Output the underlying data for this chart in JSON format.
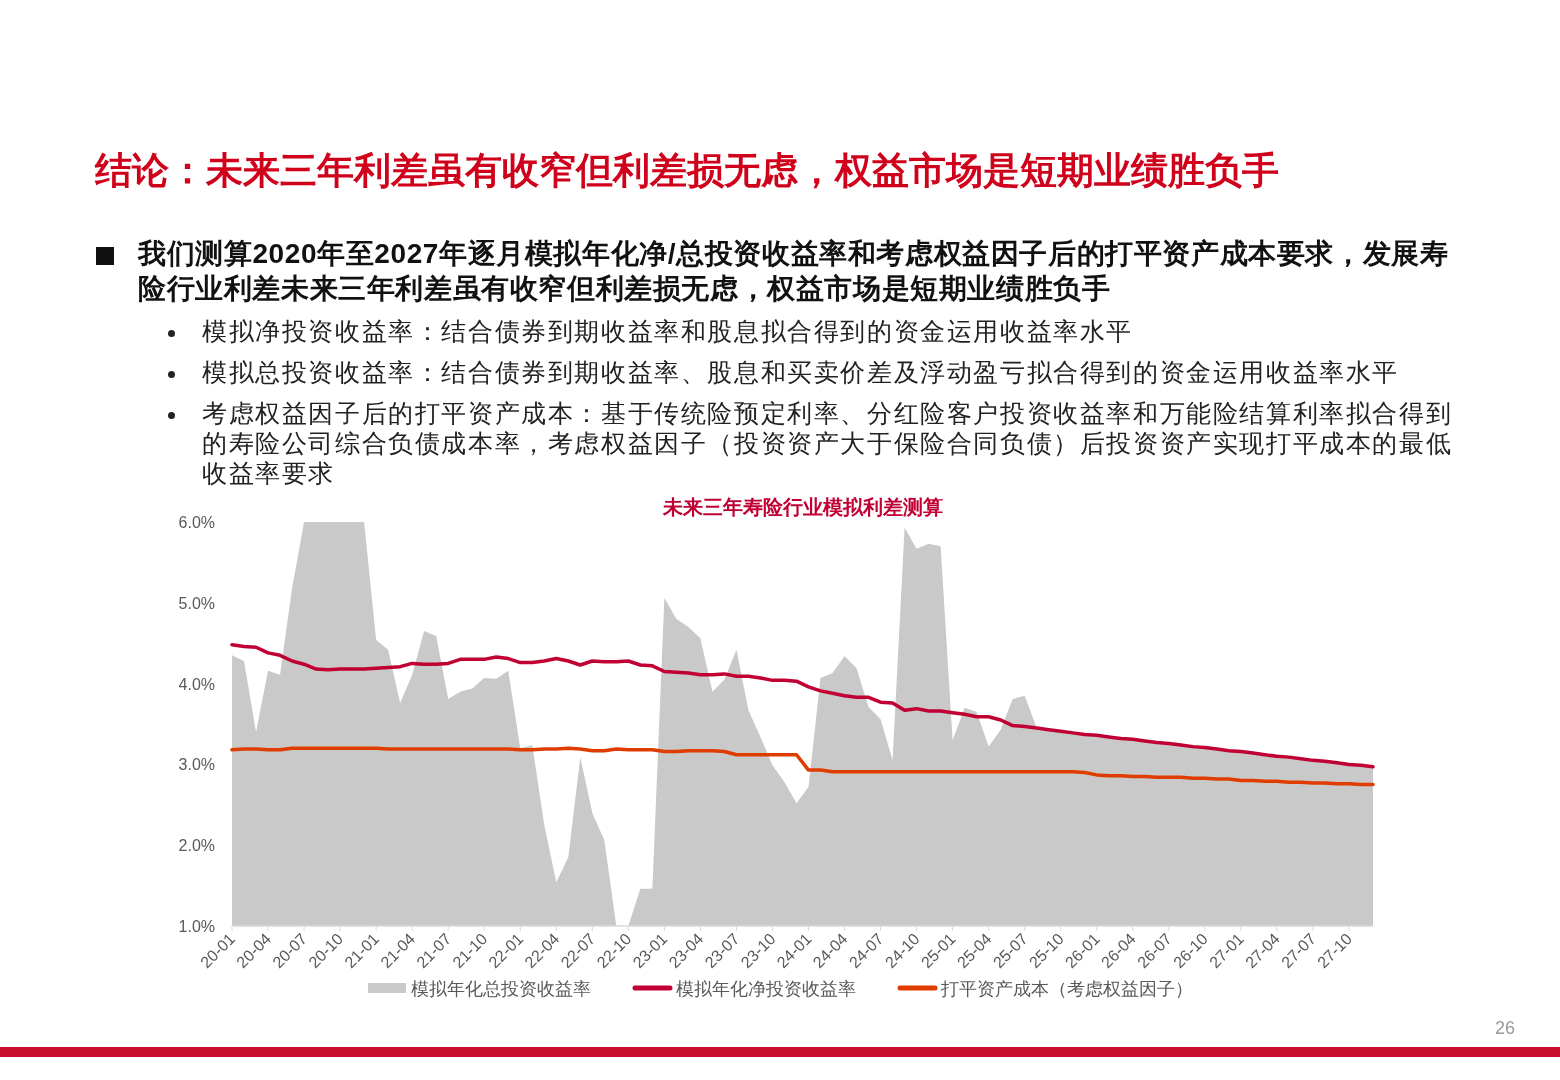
{
  "chart_data": {
    "type": "line",
    "title": "未来三年寿险行业模拟利差测算",
    "categories": [
      "20-01",
      null,
      null,
      "20-04",
      null,
      null,
      "20-07",
      null,
      null,
      "20-10",
      null,
      null,
      "21-01",
      null,
      null,
      "21-04",
      null,
      null,
      "21-07",
      null,
      null,
      "21-10",
      null,
      null,
      "22-01",
      null,
      null,
      "22-04",
      null,
      null,
      "22-07",
      null,
      null,
      "22-10",
      null,
      null,
      "23-01",
      null,
      null,
      "23-04",
      null,
      null,
      "23-07",
      null,
      null,
      "23-10",
      null,
      null,
      "24-01",
      null,
      null,
      "24-04",
      null,
      null,
      "24-07",
      null,
      null,
      "24-10",
      null,
      null,
      "25-01",
      null,
      null,
      "25-04",
      null,
      null,
      "25-07",
      null,
      null,
      "25-10",
      null,
      null,
      "26-01",
      null,
      null,
      "26-04",
      null,
      null,
      "26-07",
      null,
      null,
      "26-10",
      null,
      null,
      "27-01",
      null,
      null,
      "27-04",
      null,
      null,
      "27-07",
      null,
      null,
      "27-10",
      null,
      null
    ],
    "series": [
      {
        "name": "模拟年化总投资收益率",
        "type": "area",
        "color": "#c9c9c9",
        "values": [
          4.35,
          4.28,
          3.4,
          4.16,
          4.11,
          5.18,
          6.0,
          6.0,
          6.0,
          6.0,
          6.0,
          6.0,
          4.54,
          4.42,
          3.76,
          4.11,
          4.65,
          4.59,
          3.81,
          3.9,
          3.94,
          4.07,
          4.06,
          4.16,
          3.2,
          3.24,
          2.25,
          1.54,
          1.85,
          3.09,
          2.4,
          2.06,
          1.0,
          1.0,
          1.46,
          1.46,
          5.06,
          4.8,
          4.7,
          4.56,
          3.9,
          4.05,
          4.42,
          3.67,
          3.34,
          2.99,
          2.78,
          2.52,
          2.72,
          4.07,
          4.13,
          4.34,
          4.19,
          3.71,
          3.56,
          3.05,
          5.93,
          5.67,
          5.73,
          5.7,
          3.3,
          3.7,
          3.65,
          3.22,
          3.43,
          3.81,
          3.85,
          3.45,
          3.43,
          3.41,
          3.39,
          3.37,
          3.36,
          3.34,
          3.32,
          3.31,
          3.29,
          3.27,
          3.26,
          3.24,
          3.22,
          3.21,
          3.19,
          3.17,
          3.16,
          3.14,
          3.12,
          3.1,
          3.09,
          3.07,
          3.05,
          3.04,
          3.02,
          3.0,
          2.99,
          2.97
        ]
      },
      {
        "name": "模拟年化净投资收益率",
        "type": "line",
        "color": "#c00033",
        "values": [
          4.48,
          4.46,
          4.45,
          4.38,
          4.35,
          4.28,
          4.24,
          4.18,
          4.17,
          4.18,
          4.18,
          4.18,
          4.19,
          4.2,
          4.21,
          4.25,
          4.24,
          4.24,
          4.25,
          4.3,
          4.3,
          4.3,
          4.33,
          4.31,
          4.26,
          4.26,
          4.28,
          4.31,
          4.28,
          4.23,
          4.28,
          4.27,
          4.27,
          4.28,
          4.23,
          4.22,
          4.15,
          4.14,
          4.13,
          4.11,
          4.11,
          4.12,
          4.09,
          4.09,
          4.07,
          4.04,
          4.04,
          4.03,
          3.96,
          3.91,
          3.88,
          3.85,
          3.83,
          3.83,
          3.77,
          3.76,
          3.67,
          3.69,
          3.66,
          3.66,
          3.64,
          3.62,
          3.59,
          3.59,
          3.55,
          3.48,
          3.47,
          3.45,
          3.43,
          3.41,
          3.39,
          3.37,
          3.36,
          3.34,
          3.32,
          3.31,
          3.29,
          3.27,
          3.26,
          3.24,
          3.22,
          3.21,
          3.19,
          3.17,
          3.16,
          3.14,
          3.12,
          3.1,
          3.09,
          3.07,
          3.05,
          3.04,
          3.02,
          3.0,
          2.99,
          2.97
        ]
      },
      {
        "name": "打平资产成本（考虑权益因子）",
        "type": "line",
        "color": "#e03c00",
        "values": [
          3.18,
          3.19,
          3.19,
          3.18,
          3.18,
          3.2,
          3.2,
          3.2,
          3.2,
          3.2,
          3.2,
          3.2,
          3.2,
          3.19,
          3.19,
          3.19,
          3.19,
          3.19,
          3.19,
          3.19,
          3.19,
          3.19,
          3.19,
          3.19,
          3.18,
          3.18,
          3.19,
          3.19,
          3.2,
          3.19,
          3.17,
          3.17,
          3.19,
          3.18,
          3.18,
          3.18,
          3.16,
          3.16,
          3.17,
          3.17,
          3.17,
          3.16,
          3.12,
          3.12,
          3.12,
          3.12,
          3.12,
          3.12,
          2.93,
          2.93,
          2.91,
          2.91,
          2.91,
          2.91,
          2.91,
          2.91,
          2.91,
          2.91,
          2.91,
          2.91,
          2.91,
          2.91,
          2.91,
          2.91,
          2.91,
          2.91,
          2.91,
          2.91,
          2.91,
          2.91,
          2.91,
          2.9,
          2.87,
          2.86,
          2.86,
          2.85,
          2.85,
          2.84,
          2.84,
          2.84,
          2.83,
          2.83,
          2.82,
          2.82,
          2.8,
          2.8,
          2.79,
          2.79,
          2.78,
          2.78,
          2.77,
          2.77,
          2.76,
          2.76,
          2.75,
          2.75
        ]
      }
    ],
    "ylim": [
      1,
      6
    ],
    "yticks": [
      {
        "value": 1,
        "label": "1.0%"
      },
      {
        "value": 2,
        "label": "2.0%"
      },
      {
        "value": 3,
        "label": "3.0%"
      },
      {
        "value": 4,
        "label": "4.0%"
      },
      {
        "value": 5,
        "label": "5.0%"
      },
      {
        "value": 6,
        "label": "6.0%"
      }
    ],
    "legend": "bottom",
    "annotations": [
      "结论：未来三年利差虽有收窄但利差损无虑，权益市场是短期业绩胜负手",
      "我们测算2020年至2027年逐月模拟年化净/总投资收益率和考虑权益因子后的打平资产成本要求，发展寿险行业利差未来三年利差虽有收窄但利差损无虑，权益市场是短期业绩胜负手",
      "模拟净投资收益率：结合债券到期收益率和股息拟合得到的资金运用收益率水平",
      "模拟总投资收益率：结合债券到期收益率、股息和买卖价差及浮动盈亏拟合得到的资金运用收益率水平",
      "考虑权益因子后的打平资产成本：基于传统险预定利率、分红险客户投资收益率和万能险结算利率拟合得到的寿险公司综合负债成本率，考虑权益因子（投资资产大于保险合同负债）后投资资产实现打平成本的最低收益率要求",
      "26"
    ]
  }
}
